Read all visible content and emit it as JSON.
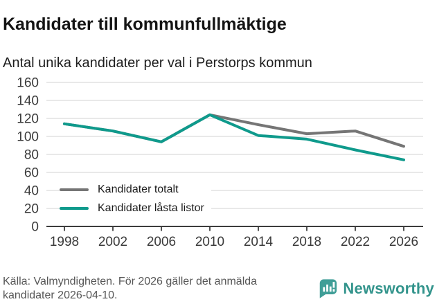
{
  "header": {
    "title": "Kandidater till kommunfullmäktige",
    "subtitle": "Antal unika kandidater per val i Perstorps kommun"
  },
  "chart_data": {
    "type": "line",
    "title": "Kandidater till kommunfullmäktige",
    "subtitle": "Antal unika kandidater per val i Perstorps kommun",
    "x": [
      1998,
      2002,
      2006,
      2010,
      2014,
      2018,
      2022,
      2026
    ],
    "series": [
      {
        "name": "Kandidater totalt",
        "color": "#757575",
        "values": [
          114,
          106,
          94,
          124,
          113,
          103,
          106,
          89
        ]
      },
      {
        "name": "Kandidater låsta listor",
        "color": "#0f9a8c",
        "values": [
          114,
          106,
          94,
          124,
          101,
          97,
          85,
          74
        ]
      }
    ],
    "xlabel": "",
    "ylabel": "",
    "ylim": [
      0,
      160
    ],
    "yticks": [
      0,
      20,
      40,
      60,
      80,
      100,
      120,
      140,
      160
    ],
    "grid": true,
    "legend_position": "inside-lower-left",
    "note": "Lines overlap (equal values) from 1998 through 2010; teal drawn on top"
  },
  "footer": {
    "source": "Källa: Valmyndigheten. För 2026 gäller det anmälda kandidater 2026-04-10.",
    "brand": "Newsworthy"
  },
  "colors": {
    "accent_teal": "#0f9a8c",
    "line_gray": "#757575",
    "brand_teal": "#33948c",
    "gridline": "#e2e2e2",
    "axis": "#3d3d3d",
    "tick_text": "#3a3a3a",
    "source_text": "#565656"
  }
}
